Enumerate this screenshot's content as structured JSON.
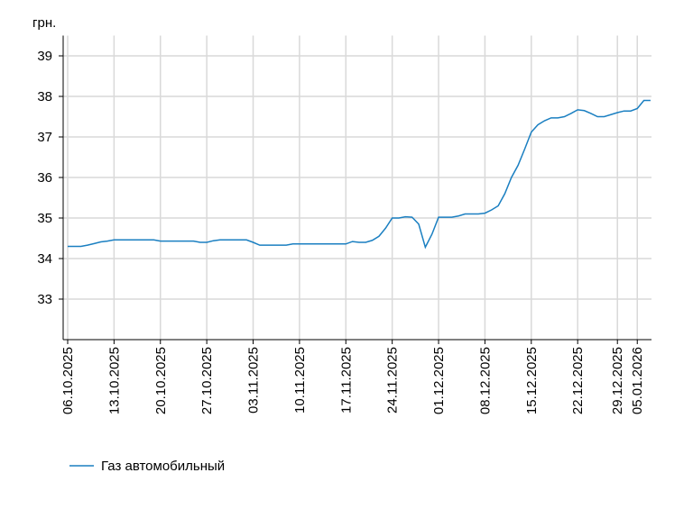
{
  "chart_data": {
    "type": "line",
    "y_unit": "грн.",
    "categories": [
      "06.10.2025",
      null,
      null,
      null,
      null,
      null,
      null,
      "13.10.2025",
      null,
      null,
      null,
      null,
      null,
      null,
      "20.10.2025",
      null,
      null,
      null,
      null,
      null,
      null,
      "27.10.2025",
      null,
      null,
      null,
      null,
      null,
      null,
      "03.11.2025",
      null,
      null,
      null,
      null,
      null,
      null,
      "10.11.2025",
      null,
      null,
      null,
      null,
      null,
      null,
      "17.11.2025",
      null,
      null,
      null,
      null,
      null,
      null,
      "24.11.2025",
      null,
      null,
      null,
      null,
      null,
      null,
      "01.12.2025",
      null,
      null,
      null,
      null,
      null,
      null,
      "08.12.2025",
      null,
      null,
      null,
      null,
      null,
      null,
      "15.12.2025",
      null,
      null,
      null,
      null,
      null,
      null,
      "22.12.2025",
      null,
      null,
      null,
      null,
      null,
      "29.12.2025",
      null,
      null,
      "05.01.2026",
      null,
      null
    ],
    "series": [
      {
        "name": "Газ автомобильный",
        "color": "#1a7fc1",
        "values": [
          34.3,
          34.3,
          34.3,
          34.33,
          34.37,
          34.41,
          34.43,
          34.46,
          34.46,
          34.46,
          34.46,
          34.46,
          34.46,
          34.46,
          34.43,
          34.43,
          34.43,
          34.43,
          34.43,
          34.43,
          34.4,
          34.4,
          34.44,
          34.46,
          34.46,
          34.46,
          34.46,
          34.46,
          34.4,
          34.33,
          34.33,
          34.33,
          34.33,
          34.33,
          34.36,
          34.36,
          34.36,
          34.36,
          34.36,
          34.36,
          34.36,
          34.36,
          34.36,
          34.42,
          34.4,
          34.4,
          34.45,
          34.55,
          34.75,
          35.0,
          35.0,
          35.03,
          35.02,
          34.85,
          34.28,
          34.6,
          35.02,
          35.02,
          35.02,
          35.05,
          35.1,
          35.1,
          35.1,
          35.12,
          35.2,
          35.3,
          35.6,
          36.0,
          36.3,
          36.7,
          37.12,
          37.3,
          37.4,
          37.47,
          37.47,
          37.5,
          37.58,
          37.67,
          37.65,
          37.58,
          37.5,
          37.5,
          37.55,
          37.6,
          37.64,
          37.64,
          37.7,
          37.9,
          37.9
        ]
      }
    ],
    "ylim": [
      32,
      39.5
    ],
    "yticks": [
      33,
      34,
      35,
      36,
      37,
      38,
      39
    ],
    "grid": true,
    "legend": "bottom-left"
  }
}
